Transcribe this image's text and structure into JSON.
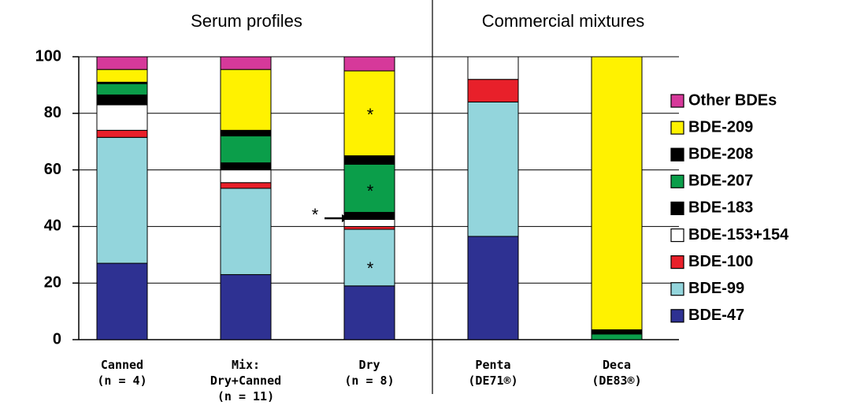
{
  "chart_data": {
    "type": "stacked_bar",
    "group_labels": [
      "Serum profiles",
      "Commercial mixtures"
    ],
    "categories": [
      "Canned\n(n = 4)",
      "Mix:\nDry+Canned\n(n = 11)",
      "Dry\n(n = 8)",
      "Penta\n(DE71®)",
      "Deca\n(DE83®)"
    ],
    "series": [
      {
        "name": "BDE-47",
        "color": "#2e3192",
        "values": [
          27,
          23,
          19,
          36.5,
          0
        ]
      },
      {
        "name": "BDE-99",
        "color": "#93d5dc",
        "values": [
          44.5,
          30.5,
          20,
          47.5,
          0
        ]
      },
      {
        "name": "BDE-100",
        "color": "#e8202a",
        "values": [
          2.5,
          2,
          1,
          8,
          0
        ]
      },
      {
        "name": "BDE-153+154",
        "color": "#ffffff",
        "values": [
          9,
          4.5,
          2.5,
          8,
          0
        ]
      },
      {
        "name": "BDE-183",
        "color": "#000000",
        "values": [
          3.5,
          2.5,
          2.5,
          0,
          0
        ]
      },
      {
        "name": "BDE-207",
        "color": "#0b9e4a",
        "values": [
          4,
          9.5,
          17,
          0,
          2
        ]
      },
      {
        "name": "BDE-208",
        "color": "#000000",
        "values": [
          0.5,
          2,
          3,
          0,
          1.5
        ]
      },
      {
        "name": "BDE-209",
        "color": "#fff200",
        "values": [
          4.5,
          21.5,
          30,
          0,
          96.5
        ]
      },
      {
        "name": "Other BDEs",
        "color": "#d6399a",
        "values": [
          4.5,
          4.5,
          5,
          0,
          0
        ]
      }
    ],
    "annotations": [
      "*",
      "*",
      "*",
      "*"
    ],
    "ylim": [
      0,
      100
    ],
    "yticks": [
      0,
      20,
      40,
      60,
      80,
      100
    ],
    "grid": true,
    "legend": "right"
  }
}
